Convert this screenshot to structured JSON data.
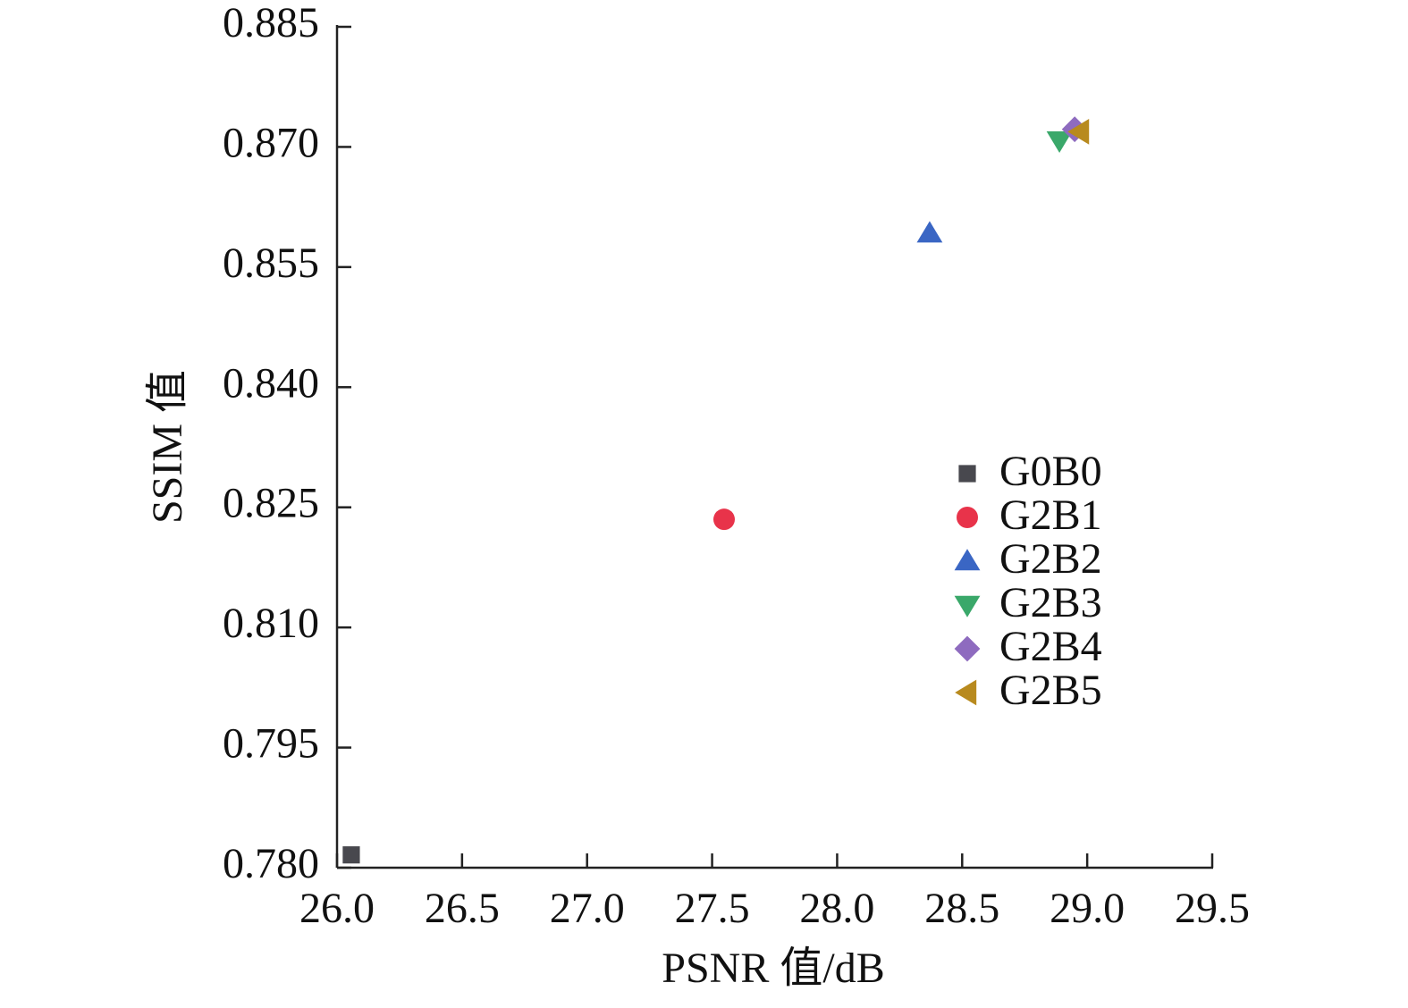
{
  "chart_data": {
    "type": "scatter",
    "x_label": "PSNR 值/dB",
    "y_label": "SSIM 值",
    "xlim": [
      26.0,
      29.5
    ],
    "xticks": [
      {
        "value": 26.0,
        "label": "26.0"
      },
      26.5,
      {
        "value": 27.0,
        "label": "27.0"
      },
      27.5,
      {
        "value": 28.0,
        "label": "28.0"
      },
      28.5,
      {
        "value": 29.0,
        "label": "29.0"
      },
      29.5
    ],
    "ylim": [
      0.78,
      0.885
    ],
    "yticks": [
      {
        "value": 0.78,
        "label": "0.780"
      },
      0.795,
      {
        "value": 0.81,
        "label": "0.810"
      },
      0.825,
      {
        "value": 0.84,
        "label": "0.840"
      },
      0.855,
      {
        "value": 0.87,
        "label": "0.870"
      },
      0.885
    ],
    "grid": false,
    "legend": "center right",
    "series": [
      {
        "name": "G0B0",
        "color": "#48484e",
        "marker": "square",
        "x": [
          26.057
        ],
        "values": [
          0.7816
        ]
      },
      {
        "name": "G2B1",
        "color": "#e8334a",
        "marker": "circle",
        "x": [
          27.548
        ],
        "values": [
          0.8235
        ]
      },
      {
        "name": "G2B2",
        "color": "#3a66c4",
        "marker": "triangle-up",
        "x": [
          28.37
        ],
        "values": [
          0.8592
        ]
      },
      {
        "name": "G2B3",
        "color": "#3aa86a",
        "marker": "triangle-down",
        "x": [
          28.889
        ],
        "values": [
          0.8708
        ]
      },
      {
        "name": "G2B4",
        "color": "#8e6bbf",
        "marker": "diamond",
        "x": [
          28.95
        ],
        "values": [
          0.8722
        ]
      },
      {
        "name": "G2B5",
        "color": "#b88a1e",
        "marker": "triangle-left",
        "x": [
          28.971
        ],
        "values": [
          0.8719
        ]
      }
    ]
  }
}
